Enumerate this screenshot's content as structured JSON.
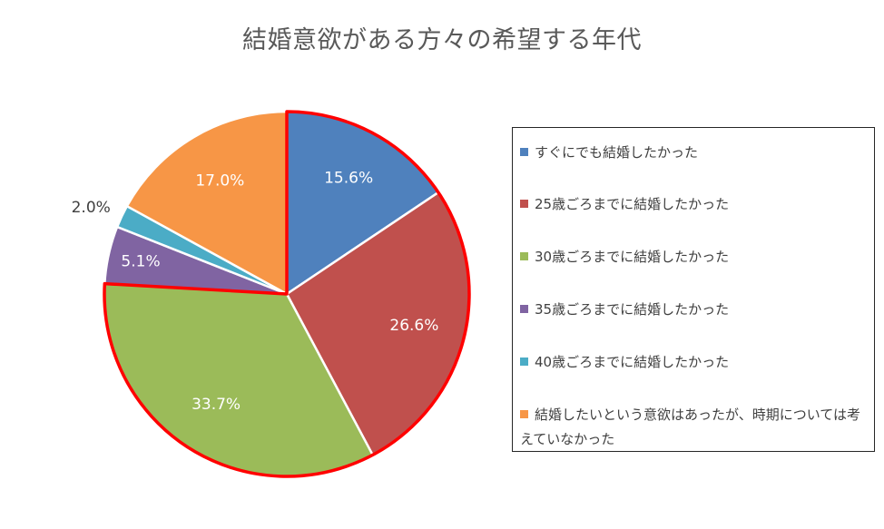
{
  "chart_data": {
    "type": "pie",
    "title": "結婚意欲がある方々の希望する年代",
    "start_angle_deg": 0,
    "direction": "clockwise",
    "legend_position": "right",
    "slices": [
      {
        "name": "すぐにでも結婚したかった",
        "value": 15.6,
        "label": "15.6%",
        "color": "#4F81BD",
        "label_color": "#ffffff"
      },
      {
        "name": "25歳ごろまでに結婚したかった",
        "value": 26.6,
        "label": "26.6%",
        "color": "#C0504D",
        "label_color": "#ffffff"
      },
      {
        "name": "30歳ごろまでに結婚したかった",
        "value": 33.7,
        "label": "33.7%",
        "color": "#9BBB59",
        "label_color": "#ffffff"
      },
      {
        "name": "35歳ごろまでに結婚したかった",
        "value": 5.1,
        "label": "5.1%",
        "color": "#8064A2",
        "label_color": "#ffffff"
      },
      {
        "name": "40歳ごろまでに結婚したかった",
        "value": 2.0,
        "label": "2.0%",
        "color": "#4BACC6",
        "label_color": "#404040"
      },
      {
        "name": "結婚したいという意欲はあったが、時期については考えていなかった",
        "value": 17.0,
        "label": "17.0%",
        "color": "#F79646",
        "label_color": "#ffffff"
      }
    ],
    "highlight": {
      "slices": [
        0,
        1,
        2
      ],
      "color": "#FF0000"
    }
  }
}
